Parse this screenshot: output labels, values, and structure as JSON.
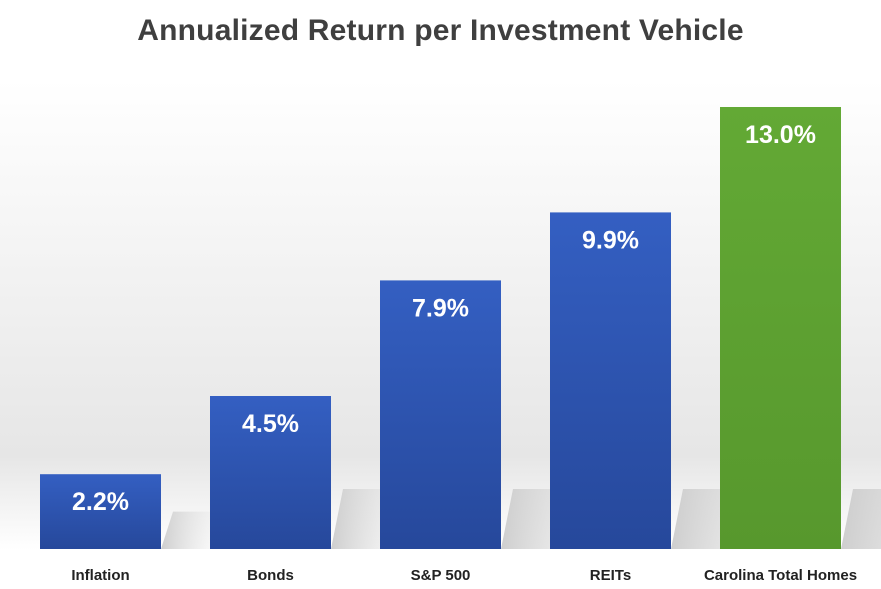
{
  "chart_data": {
    "type": "bar",
    "title": "Annualized Return per Investment Vehicle",
    "categories": [
      "Inflation",
      "Bonds",
      "S&P 500",
      "REITs",
      "Carolina Total Homes"
    ],
    "values": [
      2.2,
      4.5,
      7.9,
      9.9,
      13.0
    ],
    "value_labels": [
      "2.2%",
      "4.5%",
      "7.9%",
      "9.9%",
      "13.0%"
    ],
    "ylim": [
      0,
      13.0
    ],
    "xlabel": "",
    "ylabel": "",
    "grid": false,
    "legend": "none",
    "colors": [
      "#2f56b4",
      "#2f56b4",
      "#2f56b4",
      "#2f56b4",
      "#5ea132"
    ]
  }
}
